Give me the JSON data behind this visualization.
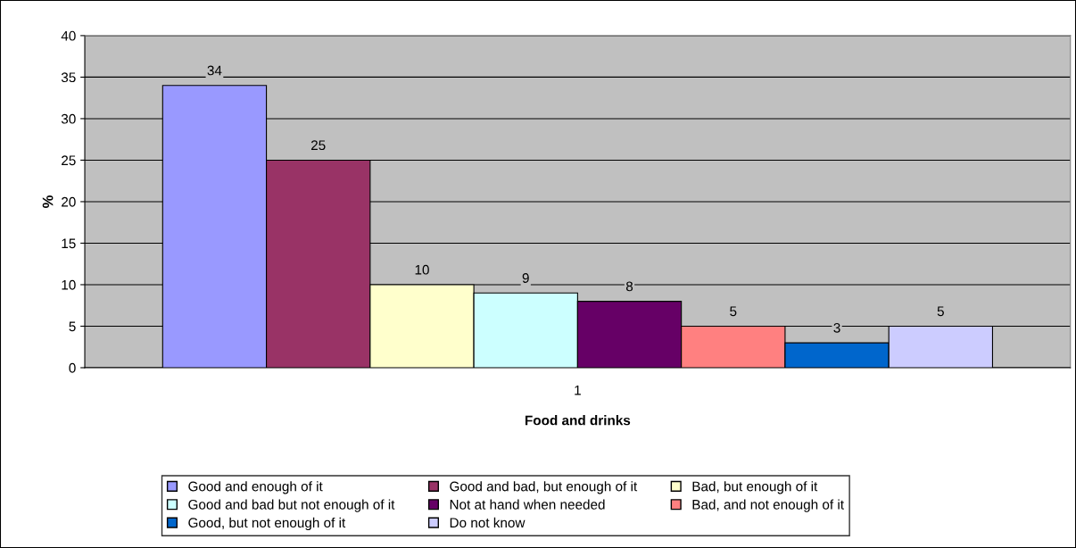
{
  "chart_data": {
    "type": "bar",
    "xlabel": "Food and drinks",
    "ylabel": "%",
    "categories": [
      "1"
    ],
    "series": [
      {
        "name": "Good and enough of it",
        "color": "#9999ff",
        "values": [
          34
        ]
      },
      {
        "name": "Good and bad, but enough of it",
        "color": "#993366",
        "values": [
          25
        ]
      },
      {
        "name": "Bad, but enough of it",
        "color": "#ffffcc",
        "values": [
          10
        ]
      },
      {
        "name": "Good and bad but not enough of it",
        "color": "#ccffff",
        "values": [
          9
        ]
      },
      {
        "name": "Not at hand when needed",
        "color": "#660066",
        "values": [
          8
        ]
      },
      {
        "name": "Bad, and not enough of it",
        "color": "#ff8080",
        "values": [
          5
        ]
      },
      {
        "name": "Good, but not enough of it",
        "color": "#0066cc",
        "values": [
          3
        ]
      },
      {
        "name": "Do not know",
        "color": "#ccccff",
        "values": [
          5
        ]
      }
    ],
    "ylim": [
      0,
      40
    ],
    "yticks": [
      0,
      5,
      10,
      15,
      20,
      25,
      30,
      35,
      40
    ],
    "grid": "y",
    "legend": "bottom",
    "data_labels": true
  }
}
